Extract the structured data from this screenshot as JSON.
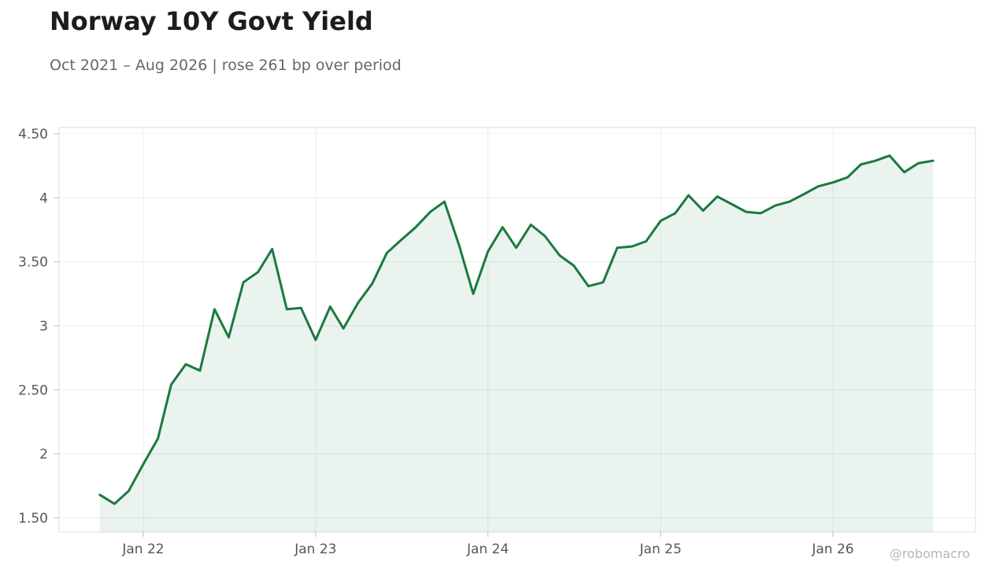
{
  "header": {
    "title": "Norway 10Y Govt Yield",
    "subtitle": "Oct 2021 – Aug 2026 | rose 261 bp over period"
  },
  "footer": {
    "credit": "@robomacro"
  },
  "colors": {
    "line": "#1a7a3e",
    "fill": "#1a7a3e",
    "grid": "#ececec",
    "axis": "#dddddd"
  },
  "chart_data": {
    "type": "area",
    "title": "Norway 10Y Govt Yield",
    "xlabel": "",
    "ylabel": "",
    "ylim": [
      1.4,
      4.55
    ],
    "grid": true,
    "legend": "none",
    "y_ticks": [
      1.5,
      2,
      2.5,
      3,
      3.5,
      4,
      4.5
    ],
    "y_tick_labels": [
      "1.50",
      "2",
      "2.50",
      "3",
      "3.50",
      "4",
      "4.50"
    ],
    "x_ticks": [
      "2022-01-01",
      "2023-01-01",
      "2024-01-01",
      "2025-01-01",
      "2026-01-01"
    ],
    "x_tick_labels": [
      "Jan 22",
      "Jan 23",
      "Jan 24",
      "Jan 25",
      "Jan 26"
    ],
    "series": [
      {
        "x": [
          "2021-10-01",
          "2021-11-01",
          "2021-12-01",
          "2022-01-01",
          "2022-02-01",
          "2022-03-01",
          "2022-04-01",
          "2022-05-01",
          "2022-06-01",
          "2022-07-01",
          "2022-08-01",
          "2022-09-01",
          "2022-10-01",
          "2022-11-01",
          "2022-12-01",
          "2023-01-01",
          "2023-02-01",
          "2023-03-01",
          "2023-04-01",
          "2023-05-01",
          "2023-06-01",
          "2023-07-01",
          "2023-08-01",
          "2023-09-01",
          "2023-10-01",
          "2023-11-01",
          "2023-12-01",
          "2024-01-01",
          "2024-02-01",
          "2024-03-01",
          "2024-04-01",
          "2024-05-01",
          "2024-06-01",
          "2024-07-01",
          "2024-08-01",
          "2024-09-01",
          "2024-10-01",
          "2024-11-01",
          "2024-12-01",
          "2025-01-01",
          "2025-02-01",
          "2025-03-01",
          "2025-04-01",
          "2025-05-01",
          "2025-06-01",
          "2025-07-01",
          "2025-08-01",
          "2025-09-01",
          "2025-10-01",
          "2025-11-01",
          "2025-12-01",
          "2026-01-01",
          "2026-02-01",
          "2026-03-01",
          "2026-04-01",
          "2026-05-01",
          "2026-06-01",
          "2026-07-01",
          "2026-08-01"
        ],
        "values": [
          1.68,
          1.61,
          1.71,
          1.92,
          2.12,
          2.54,
          2.7,
          2.65,
          3.13,
          2.91,
          3.34,
          3.42,
          3.6,
          3.13,
          3.14,
          2.89,
          3.15,
          2.98,
          3.18,
          3.33,
          3.57,
          3.67,
          3.77,
          3.89,
          3.97,
          3.63,
          3.25,
          3.58,
          3.77,
          3.61,
          3.79,
          3.7,
          3.55,
          3.47,
          3.31,
          3.34,
          3.61,
          3.62,
          3.66,
          3.82,
          3.88,
          4.02,
          3.9,
          4.01,
          3.95,
          3.89,
          3.88,
          3.94,
          3.97,
          4.03,
          4.09,
          4.12,
          4.16,
          4.26,
          4.29,
          4.33,
          4.2,
          4.27,
          4.29
        ]
      }
    ]
  }
}
